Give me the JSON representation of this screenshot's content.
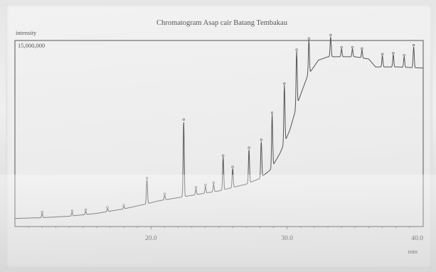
{
  "chart_data": {
    "type": "line",
    "title": "Chromatogram Asap cair Batang Tembakau",
    "ylabel": "intensity",
    "xlabel": "min",
    "y_max_label": "15,000,000",
    "xlim": [
      10.0,
      40.0
    ],
    "ylim": [
      0,
      15000000
    ],
    "x_ticks": [
      20.0,
      30.0,
      40.0
    ],
    "x_tick_labels": [
      "20.0",
      "30.0",
      "40.0"
    ],
    "series": [
      {
        "baseline": [
          [
            10.0,
            150000
          ],
          [
            12.0,
            220000
          ],
          [
            14.0,
            350000
          ],
          [
            16.0,
            600000
          ],
          [
            18.0,
            1000000
          ],
          [
            19.5,
            1400000
          ],
          [
            20.5,
            1700000
          ],
          [
            22.0,
            2000000
          ],
          [
            23.5,
            2300000
          ],
          [
            25.0,
            2600000
          ],
          [
            26.0,
            2900000
          ],
          [
            27.0,
            3200000
          ],
          [
            28.0,
            3700000
          ],
          [
            28.8,
            4500000
          ],
          [
            29.5,
            6000000
          ],
          [
            30.2,
            8000000
          ],
          [
            30.8,
            10500000
          ],
          [
            31.5,
            12800000
          ],
          [
            32.3,
            14200000
          ],
          [
            33.0,
            14500000
          ],
          [
            35.0,
            14500000
          ],
          [
            36.0,
            14300000
          ],
          [
            36.5,
            13600000
          ],
          [
            38.0,
            13600000
          ],
          [
            40.0,
            13500000
          ]
        ],
        "peaks": [
          [
            12.0,
            600000
          ],
          [
            14.2,
            700000
          ],
          [
            15.2,
            800000
          ],
          [
            16.8,
            1000000
          ],
          [
            18.0,
            1200000
          ],
          [
            19.7,
            3600000
          ],
          [
            21.0,
            2200000
          ],
          [
            22.4,
            8800000
          ],
          [
            23.3,
            2800000
          ],
          [
            24.0,
            3000000
          ],
          [
            24.6,
            3200000
          ],
          [
            25.3,
            5600000
          ],
          [
            26.0,
            4600000
          ],
          [
            27.2,
            6300000
          ],
          [
            28.1,
            7000000
          ],
          [
            28.9,
            9400000
          ],
          [
            29.8,
            12000000
          ],
          [
            30.7,
            15000000
          ],
          [
            31.6,
            16000000
          ],
          [
            33.2,
            16300000
          ],
          [
            34.0,
            15200000
          ],
          [
            34.8,
            15200000
          ],
          [
            35.5,
            15100000
          ],
          [
            37.0,
            14600000
          ],
          [
            37.8,
            14700000
          ],
          [
            38.6,
            14500000
          ],
          [
            39.3,
            15400000
          ]
        ]
      }
    ]
  }
}
